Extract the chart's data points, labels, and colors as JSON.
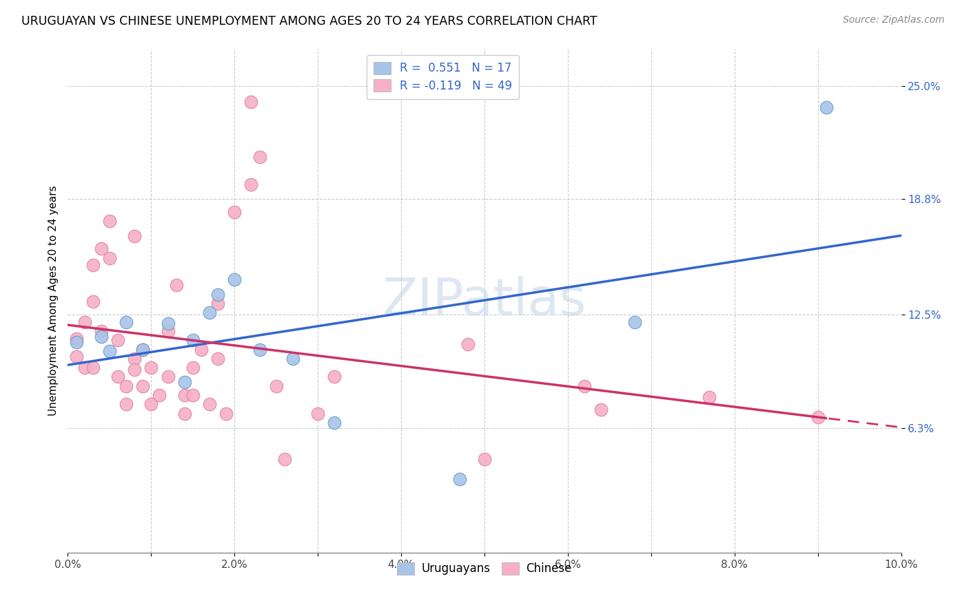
{
  "title": "URUGUAYAN VS CHINESE UNEMPLOYMENT AMONG AGES 20 TO 24 YEARS CORRELATION CHART",
  "source": "Source: ZipAtlas.com",
  "ylabel": "Unemployment Among Ages 20 to 24 years",
  "ytick_labels": [
    "6.3%",
    "12.5%",
    "18.8%",
    "25.0%"
  ],
  "ytick_vals": [
    0.063,
    0.125,
    0.188,
    0.25
  ],
  "xlim": [
    0.0,
    0.1
  ],
  "ylim": [
    -0.005,
    0.27
  ],
  "watermark": "ZIPatlas",
  "uruguayan_color": "#a8c4e8",
  "chinese_color": "#f5b0c5",
  "uruguayan_line_color": "#3366cc",
  "chinese_line_color": "#cc3366",
  "uruguayan_x": [
    0.001,
    0.004,
    0.005,
    0.007,
    0.009,
    0.012,
    0.014,
    0.015,
    0.017,
    0.018,
    0.02,
    0.023,
    0.027,
    0.032,
    0.047,
    0.068,
    0.091
  ],
  "uruguayan_y": [
    0.11,
    0.113,
    0.105,
    0.121,
    0.106,
    0.12,
    0.088,
    0.111,
    0.126,
    0.136,
    0.144,
    0.106,
    0.101,
    0.066,
    0.035,
    0.121,
    0.238
  ],
  "chinese_x": [
    0.001,
    0.001,
    0.002,
    0.002,
    0.003,
    0.003,
    0.003,
    0.004,
    0.004,
    0.005,
    0.005,
    0.006,
    0.006,
    0.007,
    0.007,
    0.008,
    0.008,
    0.008,
    0.009,
    0.009,
    0.01,
    0.01,
    0.011,
    0.012,
    0.012,
    0.013,
    0.014,
    0.014,
    0.015,
    0.015,
    0.016,
    0.017,
    0.018,
    0.018,
    0.019,
    0.02,
    0.022,
    0.022,
    0.023,
    0.025,
    0.026,
    0.03,
    0.032,
    0.048,
    0.05,
    0.062,
    0.064,
    0.077,
    0.09
  ],
  "chinese_y": [
    0.112,
    0.102,
    0.121,
    0.096,
    0.152,
    0.132,
    0.096,
    0.161,
    0.116,
    0.176,
    0.156,
    0.111,
    0.091,
    0.086,
    0.076,
    0.101,
    0.095,
    0.168,
    0.106,
    0.086,
    0.096,
    0.076,
    0.081,
    0.116,
    0.091,
    0.141,
    0.081,
    0.071,
    0.096,
    0.081,
    0.106,
    0.076,
    0.131,
    0.101,
    0.071,
    0.181,
    0.196,
    0.241,
    0.211,
    0.086,
    0.046,
    0.071,
    0.091,
    0.109,
    0.046,
    0.086,
    0.073,
    0.08,
    0.069
  ]
}
